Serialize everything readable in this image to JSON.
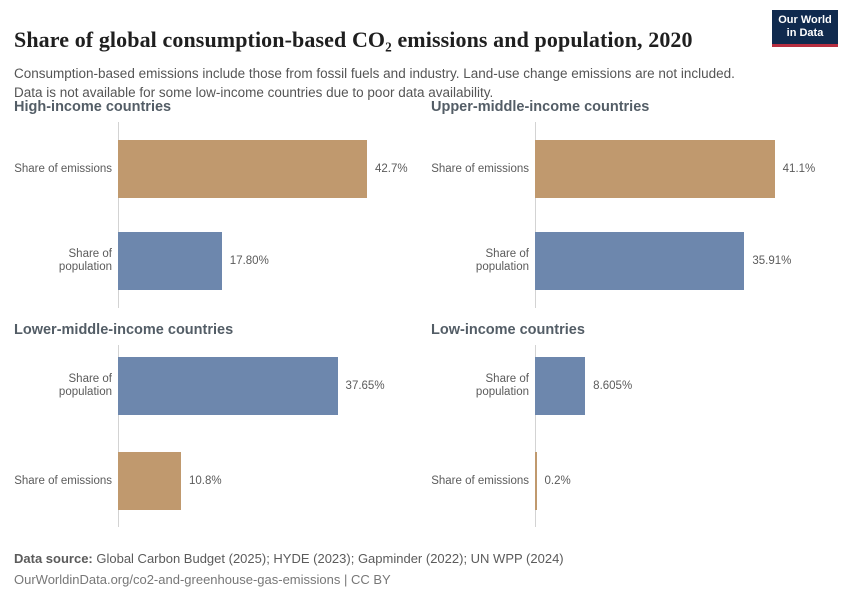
{
  "header": {
    "title": "Share of global consumption-based CO₂ emissions and population, 2020",
    "subtitle": "Consumption-based emissions include those from fossil fuels and industry. Land-use change emissions are not included. Data is not available for some low-income countries due to poor data availability.",
    "logo": {
      "line1": "Our World",
      "line2": "in Data"
    }
  },
  "chart_data": {
    "type": "bar",
    "orientation": "horizontal",
    "unit": "%",
    "axis_max_percent": 42.7,
    "grid": "off",
    "legend": "none",
    "colors": {
      "emissions": "#c0996e",
      "population": "#6d87ad"
    },
    "facets": [
      {
        "title": "High-income countries",
        "bars": [
          {
            "label": "Share of emissions",
            "value": 42.7,
            "value_label": "42.7%",
            "color_key": "emissions"
          },
          {
            "label": "Share of population",
            "value": 17.8,
            "value_label": "17.80%",
            "color_key": "population"
          }
        ]
      },
      {
        "title": "Upper-middle-income countries",
        "bars": [
          {
            "label": "Share of emissions",
            "value": 41.1,
            "value_label": "41.1%",
            "color_key": "emissions"
          },
          {
            "label": "Share of population",
            "value": 35.91,
            "value_label": "35.91%",
            "color_key": "population"
          }
        ]
      },
      {
        "title": "Lower-middle-income countries",
        "bars": [
          {
            "label": "Share of population",
            "value": 37.65,
            "value_label": "37.65%",
            "color_key": "population"
          },
          {
            "label": "Share of emissions",
            "value": 10.8,
            "value_label": "10.8%",
            "color_key": "emissions"
          }
        ]
      },
      {
        "title": "Low-income countries",
        "bars": [
          {
            "label": "Share of population",
            "value": 8.605,
            "value_label": "8.605%",
            "color_key": "population"
          },
          {
            "label": "Share of emissions",
            "value": 0.2,
            "value_label": "0.2%",
            "color_key": "emissions"
          }
        ]
      }
    ]
  },
  "footer": {
    "source_label": "Data source:",
    "source_text": " Global Carbon Budget (2025); HYDE (2023); Gapminder (2022); UN WPP (2024)",
    "attribution": "OurWorldinData.org/co2-and-greenhouse-gas-emissions | CC BY"
  }
}
